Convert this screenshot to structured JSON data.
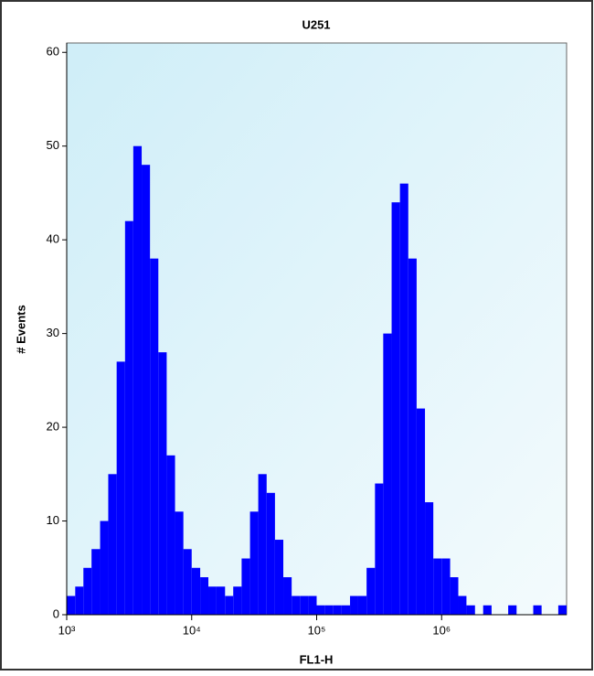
{
  "chart_data": {
    "type": "histogram",
    "title": "U251",
    "x_label": "FL1-H",
    "y_label": "# Events",
    "x_log": true,
    "color": "#0000ff",
    "bins": [
      1000,
      1170,
      1360,
      1580,
      1850,
      2150,
      2510,
      2930,
      3410,
      3980,
      4640,
      5410,
      6310,
      7360,
      8580,
      10000,
      11700,
      13600,
      15800,
      18500,
      21500,
      25100,
      29300,
      34100,
      39800,
      46400,
      54100,
      63100,
      73600,
      85800,
      100000,
      117000,
      136000,
      158000,
      185000,
      215000,
      251000,
      293000,
      341000,
      398000,
      464000,
      541000,
      631000,
      736000,
      858000,
      1000000,
      1170000,
      1360000,
      1580000,
      1850000,
      2150000,
      2510000,
      2930000,
      3410000,
      3980000,
      4640000,
      5410000,
      6310000,
      7360000,
      8580000,
      10000000
    ],
    "counts": [
      2,
      3,
      5,
      7,
      10,
      15,
      27,
      42,
      50,
      48,
      38,
      28,
      17,
      11,
      7,
      5,
      4,
      3,
      3,
      2,
      3,
      6,
      11,
      15,
      13,
      8,
      4,
      2,
      2,
      2,
      1,
      1,
      1,
      1,
      2,
      2,
      5,
      14,
      30,
      44,
      46,
      38,
      22,
      12,
      6,
      6,
      4,
      2,
      1,
      0,
      1,
      0,
      0,
      1,
      0,
      0,
      1,
      0,
      0,
      1
    ],
    "xlim": [
      1000,
      10000000
    ],
    "xticks": [
      {
        "value": 1000,
        "label": "10³"
      },
      {
        "value": 10000,
        "label": "10⁴"
      },
      {
        "value": 100000,
        "label": "10⁵"
      },
      {
        "value": 1000000,
        "label": "10⁶"
      }
    ],
    "ylim": [
      0,
      61
    ],
    "yticks": [
      0,
      10,
      20,
      30,
      40,
      50,
      60
    ]
  }
}
